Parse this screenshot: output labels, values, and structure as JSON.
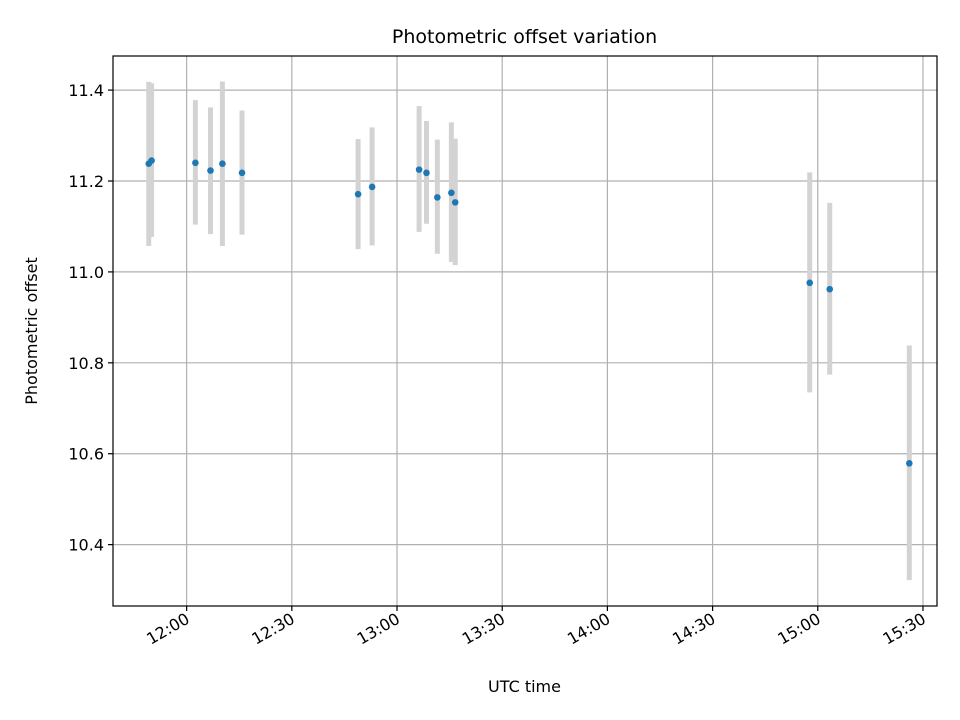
{
  "chart_data": {
    "type": "scatter",
    "title": "Photometric offset variation",
    "xlabel": "UTC time",
    "ylabel": "Photometric offset",
    "x_unit": "UTC time (HH:MM)",
    "xlim": [
      "11:39",
      "15:34"
    ],
    "ylim": [
      10.265,
      11.475
    ],
    "x_ticks": [
      "12:00",
      "12:30",
      "13:00",
      "13:30",
      "14:00",
      "14:30",
      "15:00",
      "15:30"
    ],
    "y_ticks": [
      10.4,
      10.6,
      10.8,
      11.0,
      11.2,
      11.4
    ],
    "y_tick_labels": [
      "10.4",
      "10.6",
      "10.8",
      "11.0",
      "11.2",
      "11.4"
    ],
    "grid": true,
    "error_bar_color": "#d3d3d3",
    "marker_color": "#1f77b4",
    "points": [
      {
        "x": "11:49.2",
        "y": 11.238,
        "err_low": 11.057,
        "err_high": 11.418
      },
      {
        "x": "11:50.0",
        "y": 11.245,
        "err_low": 11.077,
        "err_high": 11.415
      },
      {
        "x": "12:02.5",
        "y": 11.24,
        "err_low": 11.104,
        "err_high": 11.378
      },
      {
        "x": "12:06.8",
        "y": 11.223,
        "err_low": 11.083,
        "err_high": 11.362
      },
      {
        "x": "12:10.2",
        "y": 11.238,
        "err_low": 11.057,
        "err_high": 11.419
      },
      {
        "x": "12:15.8",
        "y": 11.218,
        "err_low": 11.082,
        "err_high": 11.355
      },
      {
        "x": "12:48.9",
        "y": 11.171,
        "err_low": 11.05,
        "err_high": 11.292
      },
      {
        "x": "12:52.9",
        "y": 11.187,
        "err_low": 11.058,
        "err_high": 11.318
      },
      {
        "x": "13:06.3",
        "y": 11.225,
        "err_low": 11.088,
        "err_high": 11.365
      },
      {
        "x": "13:08.4",
        "y": 11.218,
        "err_low": 11.106,
        "err_high": 11.332
      },
      {
        "x": "13:11.5",
        "y": 11.164,
        "err_low": 11.04,
        "err_high": 11.291
      },
      {
        "x": "13:15.5",
        "y": 11.174,
        "err_low": 11.022,
        "err_high": 11.329
      },
      {
        "x": "13:16.6",
        "y": 11.153,
        "err_low": 11.015,
        "err_high": 11.293
      },
      {
        "x": "14:57.7",
        "y": 10.976,
        "err_low": 10.735,
        "err_high": 11.219
      },
      {
        "x": "15:03.4",
        "y": 10.962,
        "err_low": 10.774,
        "err_high": 11.152
      },
      {
        "x": "15:26.1",
        "y": 10.579,
        "err_low": 10.322,
        "err_high": 10.838
      }
    ]
  }
}
